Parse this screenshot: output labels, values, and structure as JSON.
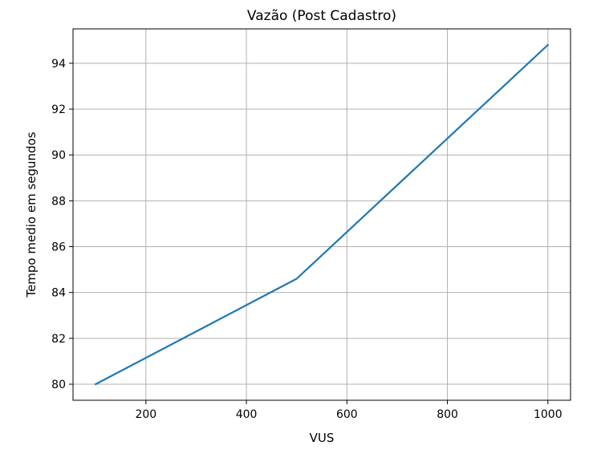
{
  "chart_data": {
    "type": "line",
    "title": "Vazão (Post Cadastro)",
    "xlabel": "VUS",
    "ylabel": "Tempo medio em segundos",
    "xlim": [
      55,
      1045
    ],
    "ylim": [
      79.3,
      95.5
    ],
    "xticks": [
      200,
      400,
      600,
      800,
      1000
    ],
    "yticks": [
      80,
      82,
      84,
      86,
      88,
      90,
      92,
      94
    ],
    "grid": true,
    "series": [
      {
        "x": [
          100,
          500,
          1000
        ],
        "y": [
          80.0,
          84.6,
          94.8
        ],
        "color": "#1f77b4"
      }
    ]
  }
}
